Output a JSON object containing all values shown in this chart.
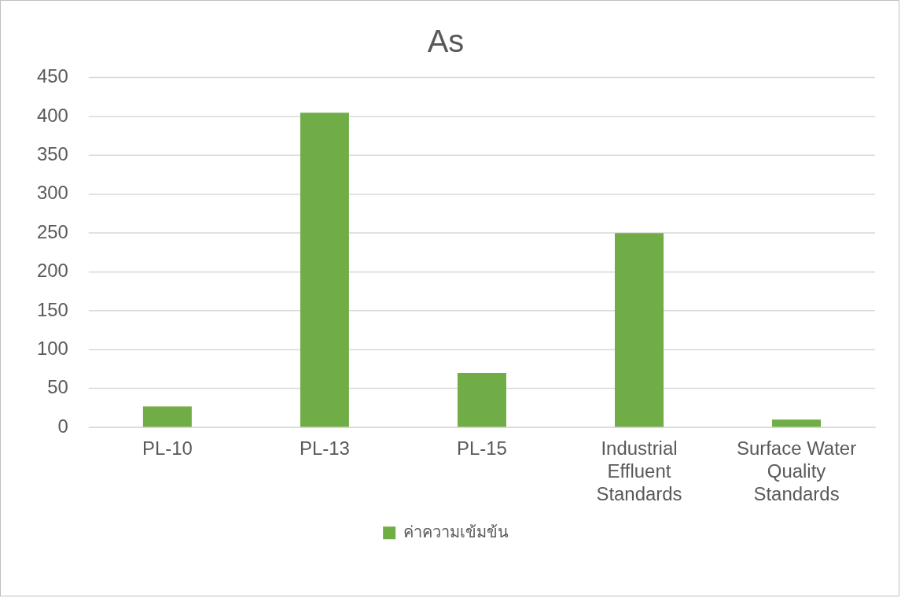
{
  "chart_data": {
    "type": "bar",
    "title": "As",
    "categories": [
      "PL-10",
      "PL-13",
      "PL-15",
      "Industrial Effluent Standards",
      "Surface Water Quality Standards"
    ],
    "series": [
      {
        "name": "ค่าความเข้มข้น",
        "color": "#70ad47",
        "values": [
          27,
          405,
          70,
          250,
          10
        ]
      }
    ],
    "ylim": [
      0,
      450
    ],
    "yticks": [
      0,
      50,
      100,
      150,
      200,
      250,
      300,
      350,
      400,
      450
    ],
    "grid": "y",
    "legend": "bottom"
  }
}
